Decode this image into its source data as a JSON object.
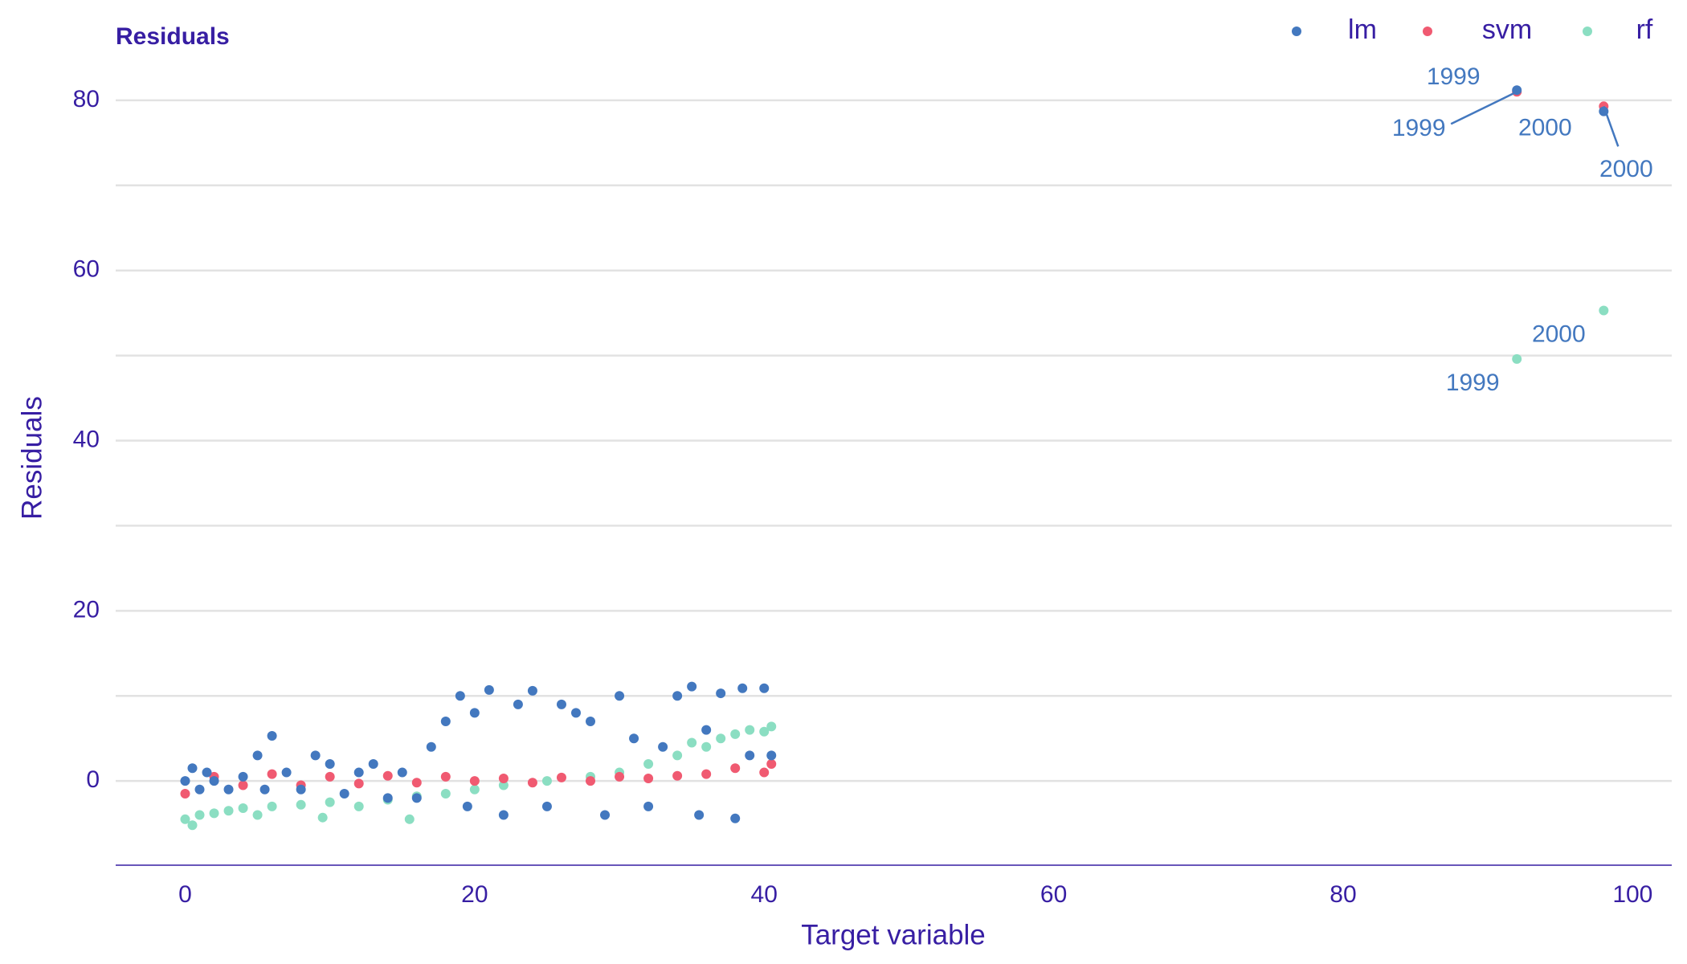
{
  "chart_data": {
    "type": "scatter",
    "title": "Residuals",
    "x_label": "Target variable",
    "y_label": "Residuals",
    "xlim": [
      -4.8,
      102.7
    ],
    "ylim": [
      -9.9,
      86.6
    ],
    "xticks": [
      0,
      20,
      40,
      60,
      80,
      100
    ],
    "yticks": [
      0,
      20,
      40,
      60,
      80
    ],
    "yminorticks": [
      10,
      30,
      50,
      70
    ],
    "grid": true,
    "legend": "top-right",
    "series": [
      {
        "name": "lm",
        "color": "#4378bf",
        "x": [
          0,
          0.5,
          1,
          1.5,
          2,
          3,
          4,
          5,
          5.5,
          6,
          7,
          8,
          9,
          10,
          11,
          12,
          13,
          14,
          15,
          16,
          17,
          18,
          19,
          19.5,
          20,
          21,
          22,
          23,
          24,
          25,
          26,
          27,
          28,
          29,
          30,
          31,
          32,
          33,
          34,
          35,
          35.5,
          36,
          37,
          38,
          38.5,
          39,
          40,
          40.5,
          92,
          98
        ],
        "values": [
          0,
          1.5,
          -1,
          1,
          0,
          -1,
          0.5,
          3,
          -1,
          5.3,
          1,
          -1,
          3,
          2,
          -1.5,
          1,
          2,
          -2,
          1,
          -2,
          4,
          7,
          10,
          -3,
          8,
          10.7,
          -4,
          9,
          10.6,
          -3,
          9,
          8,
          7,
          -4,
          10,
          5,
          -3,
          4,
          10,
          11.1,
          -4,
          6,
          10.3,
          -4.4,
          10.9,
          3,
          10.9,
          3,
          81.2,
          78.7
        ]
      },
      {
        "name": "svm",
        "color": "#f05a71",
        "x": [
          0,
          2,
          4,
          6,
          8,
          10,
          12,
          14,
          16,
          18,
          20,
          22,
          24,
          26,
          28,
          30,
          32,
          34,
          36,
          38,
          40,
          40.5,
          92,
          98
        ],
        "values": [
          -1.5,
          0.5,
          -0.5,
          0.8,
          -0.5,
          0.5,
          -0.3,
          0.6,
          -0.2,
          0.5,
          0,
          0.3,
          -0.2,
          0.4,
          0,
          0.5,
          0.3,
          0.6,
          0.8,
          1.5,
          1,
          2,
          81,
          79.3
        ]
      },
      {
        "name": "rf",
        "color": "#8bdec2",
        "x": [
          0,
          0.5,
          1,
          2,
          3,
          4,
          5,
          6,
          8,
          9.5,
          10,
          12,
          14,
          15.5,
          16,
          18,
          20,
          22,
          25,
          28,
          30,
          32,
          34,
          35,
          36,
          37,
          38,
          39,
          40,
          40.5,
          92,
          98
        ],
        "values": [
          -4.5,
          -5.2,
          -4,
          -3.8,
          -3.5,
          -3.2,
          -4,
          -3,
          -2.8,
          -4.3,
          -2.5,
          -3,
          -2.2,
          -4.5,
          -1.8,
          -1.5,
          -1,
          -0.5,
          0,
          0.5,
          1,
          2,
          3,
          4.5,
          4,
          5,
          5.5,
          6,
          5.8,
          6.4,
          49.6,
          55.3
        ]
      }
    ],
    "annotations": [
      {
        "label": "1999",
        "x": 92,
        "y": 81.2
      },
      {
        "label": "1999",
        "x": 92,
        "y": 81
      },
      {
        "label": "2000",
        "x": 98,
        "y": 78.7
      },
      {
        "label": "2000",
        "x": 98,
        "y": 79.3
      },
      {
        "label": "2000",
        "x": 98,
        "y": 55.3
      },
      {
        "label": "1999",
        "x": 92,
        "y": 49.6
      }
    ]
  }
}
